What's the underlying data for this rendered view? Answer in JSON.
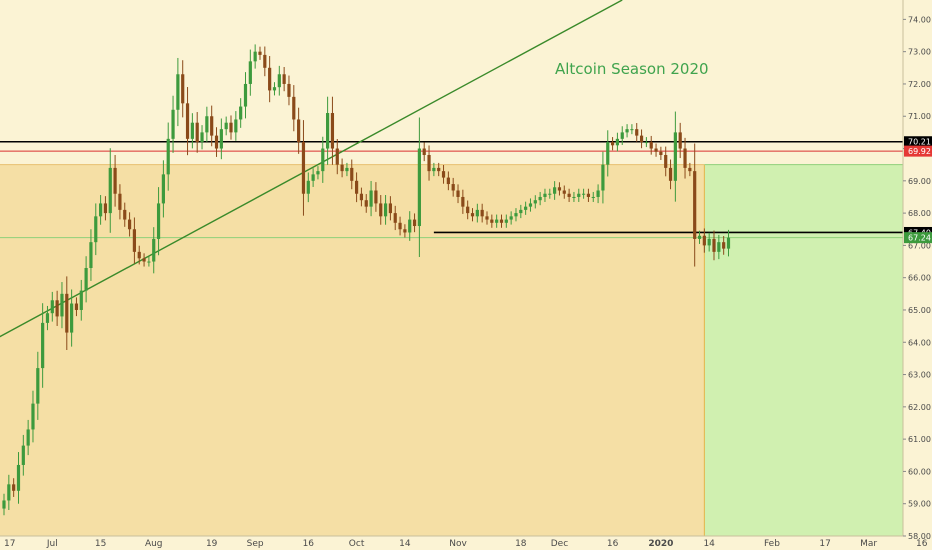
{
  "chart_data": {
    "type": "candlestick",
    "title": "Altcoin Season 2020",
    "xlabel": "",
    "ylabel": "",
    "ylim": [
      58.0,
      74.6
    ],
    "yticks": [
      58.0,
      59.0,
      60.0,
      61.0,
      62.0,
      63.0,
      64.0,
      65.0,
      66.0,
      67.0,
      68.0,
      69.0,
      70.0,
      71.0,
      72.0,
      73.0,
      74.0
    ],
    "ytick_labels": [
      "58.00",
      "59.00",
      "60.00",
      "61.00",
      "62.00",
      "63.00",
      "64.00",
      "65.00",
      "66.00",
      "67.00",
      "68.00",
      "69.00",
      "70.00",
      "71.00",
      "72.00",
      "73.00",
      "74.00"
    ],
    "xticks": [
      {
        "label": "17",
        "index": 0
      },
      {
        "label": "Jul",
        "index": 10
      },
      {
        "label": "15",
        "index": 20
      },
      {
        "label": "Aug",
        "index": 31
      },
      {
        "label": "19",
        "index": 43
      },
      {
        "label": "Sep",
        "index": 52
      },
      {
        "label": "16",
        "index": 63
      },
      {
        "label": "Oct",
        "index": 73
      },
      {
        "label": "14",
        "index": 83
      },
      {
        "label": "Nov",
        "index": 94
      },
      {
        "label": "18",
        "index": 107
      },
      {
        "label": "Dec",
        "index": 115
      },
      {
        "label": "16",
        "index": 126
      },
      {
        "label": "2020",
        "index": 136
      },
      {
        "label": "14",
        "index": 146
      },
      {
        "label": "Feb",
        "index": 159
      },
      {
        "label": "17",
        "index": 170
      },
      {
        "label": "Mar",
        "index": 179
      },
      {
        "label": "16",
        "index": 190
      }
    ],
    "closes": [
      59.1,
      59.6,
      59.4,
      60.2,
      60.8,
      61.3,
      62.1,
      63.2,
      64.6,
      64.9,
      65.3,
      64.8,
      65.5,
      64.3,
      65.2,
      65.0,
      65.6,
      66.3,
      67.1,
      67.9,
      68.3,
      68.0,
      69.4,
      68.6,
      68.1,
      67.8,
      67.5,
      66.8,
      66.6,
      66.5,
      66.5,
      67.2,
      68.3,
      69.2,
      70.3,
      71.2,
      72.3,
      71.4,
      70.3,
      70.8,
      70.2,
      70.5,
      71.0,
      70.4,
      70.0,
      70.6,
      70.8,
      70.5,
      70.9,
      71.3,
      72.0,
      72.7,
      73.0,
      72.9,
      72.5,
      71.8,
      71.9,
      72.3,
      72.0,
      71.6,
      70.9,
      70.2,
      68.6,
      69.0,
      69.2,
      69.3,
      70.0,
      71.1,
      70.0,
      69.5,
      69.3,
      69.4,
      69.0,
      68.6,
      68.4,
      68.2,
      68.7,
      68.3,
      67.9,
      68.3,
      68.0,
      67.7,
      67.5,
      67.4,
      67.8,
      67.6,
      70.0,
      69.8,
      69.3,
      69.4,
      69.3,
      69.1,
      68.9,
      68.7,
      68.5,
      68.2,
      68.0,
      67.9,
      68.1,
      67.9,
      67.8,
      67.7,
      67.8,
      67.7,
      67.8,
      67.9,
      68.0,
      68.1,
      68.2,
      68.3,
      68.4,
      68.5,
      68.6,
      68.6,
      68.8,
      68.7,
      68.6,
      68.5,
      68.5,
      68.6,
      68.6,
      68.5,
      68.5,
      68.7,
      69.5,
      70.2,
      70.1,
      70.3,
      70.5,
      70.6,
      70.6,
      70.4,
      70.2,
      70.2,
      70.0,
      69.9,
      69.8,
      69.4,
      69.0,
      70.5,
      70.0,
      69.4,
      69.3,
      67.2,
      67.3,
      67.0,
      67.2,
      66.8,
      67.1,
      66.9,
      67.24
    ]
  },
  "annotations": {
    "title_text": "Altcoin Season 2020",
    "tag_upper": "70.21",
    "tag_red": "69.92",
    "tag_support": "67.40",
    "tag_last": "67.24",
    "level_upper": 70.21,
    "level_red": 69.92,
    "level_zone_top": 69.5,
    "level_support": 67.4,
    "level_thin": 67.24,
    "trendline_from": {
      "index": -3,
      "value": 64.0
    },
    "trendline_to": {
      "index": 128,
      "value": 74.6
    },
    "support_from_index": 89,
    "projection_start_index": 145
  },
  "colors": {
    "up": "#3d9a3d",
    "down": "#8a4a1a",
    "zone": "#f5dfa5",
    "target": "#d0f0b0",
    "trendline": "#3a8a2a",
    "level": "#000000",
    "red": "#d93030",
    "tag_red": "#e53935",
    "tag_green": "#3d9a3d"
  }
}
